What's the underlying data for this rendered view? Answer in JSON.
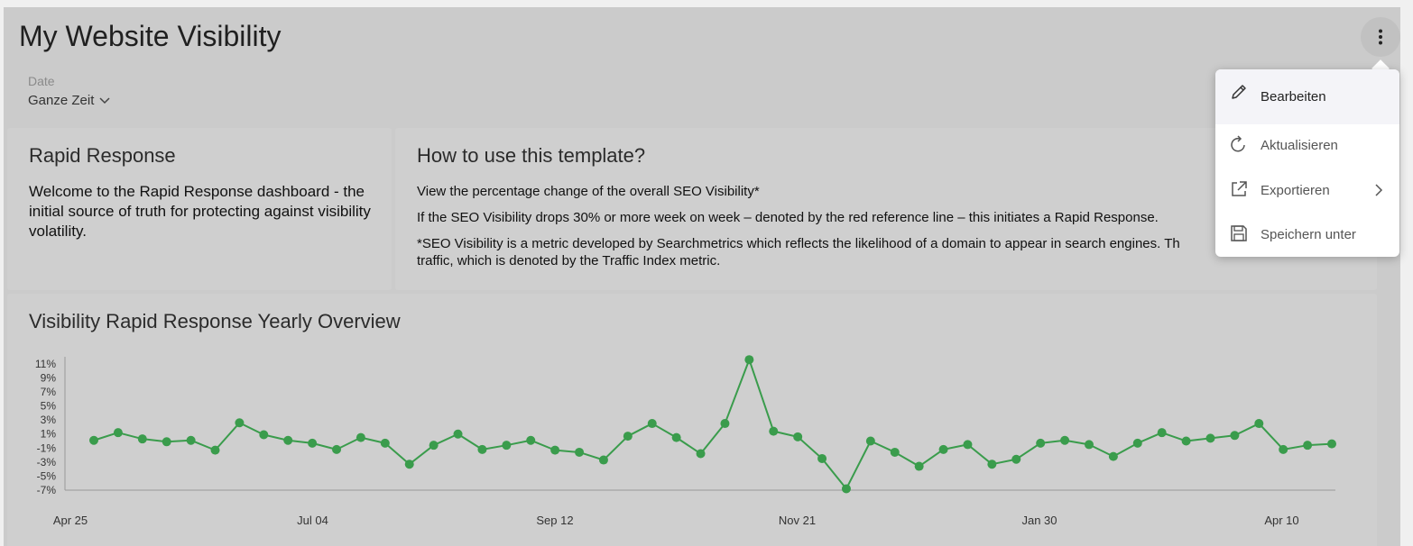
{
  "header": {
    "title": "My Website Visibility",
    "date_label": "Date",
    "date_value": "Ganze Zeit"
  },
  "cards": {
    "rapid_response": {
      "title": "Rapid Response",
      "body": "Welcome to the Rapid Response dashboard - the initial source of truth for protecting against visibility volatility."
    },
    "how_to": {
      "title": "How to use this template?",
      "lines": [
        "View the percentage change of the overall SEO Visibility*",
        "If the SEO Visibility drops 30% or more week on week – denoted by the red reference line – this initiates a Rapid Response.",
        "*SEO Visibility is a metric developed by Searchmetrics which reflects the likelihood of a domain to appear in search engines. Th",
        "traffic, which is denoted by the Traffic Index metric."
      ]
    }
  },
  "menu": {
    "items": [
      {
        "label": "Bearbeiten",
        "icon": "pencil-icon"
      },
      {
        "label": "Aktualisieren",
        "icon": "refresh-icon"
      },
      {
        "label": "Exportieren",
        "icon": "export-icon"
      },
      {
        "label": "Speichern unter",
        "icon": "save-icon"
      }
    ]
  },
  "colors": {
    "series": "#3a9c4c",
    "axis": "#9a9a9a"
  },
  "chart_data": {
    "type": "line",
    "title": "Visibility Rapid Response Yearly Overview",
    "x_ticks": [
      "Apr 25",
      "Jul 04",
      "Sep 12",
      "Nov 21",
      "Jan 30",
      "Apr 10"
    ],
    "y_ticks": [
      "11%",
      "9%",
      "7%",
      "5%",
      "3%",
      "1%",
      "-1%",
      "-3%",
      "-5%",
      "-7%"
    ],
    "ylim": [
      -7,
      11.5
    ],
    "grid": false,
    "series": [
      {
        "values": [
          0.1,
          1.2,
          0.3,
          -0.1,
          0.1,
          -1.3,
          2.6,
          0.9,
          0.1,
          -0.3,
          -1.2,
          0.5,
          -0.3,
          -3.3,
          -0.6,
          1.0,
          -1.2,
          -0.6,
          0.1,
          -1.3,
          -1.6,
          -2.7,
          0.7,
          2.5,
          0.5,
          -1.8,
          2.5,
          11.6,
          1.4,
          0.6,
          -2.5,
          -6.8,
          0.0,
          -1.6,
          -3.6,
          -1.2,
          -0.5,
          -3.3,
          -2.6,
          -0.3,
          0.1,
          -0.5,
          -2.2,
          -0.3,
          1.2,
          0.0,
          0.4,
          0.8,
          2.5,
          -1.2,
          -0.6,
          -0.4
        ]
      }
    ]
  }
}
